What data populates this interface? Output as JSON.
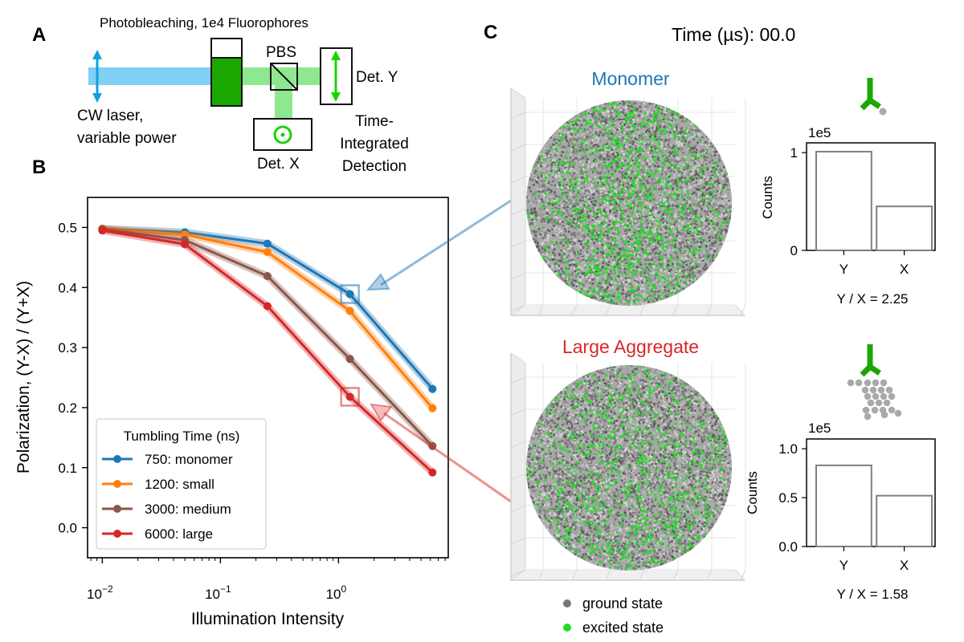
{
  "panel_labels": {
    "a": "A",
    "b": "B",
    "c": "C"
  },
  "schematic": {
    "title": "Photobleaching, 1e4 Fluorophores",
    "laser_label_1": "CW laser,",
    "laser_label_2": "variable power",
    "pbs_label": "PBS",
    "det_y_label": "Det. Y",
    "det_x_label": "Det. X",
    "detection_1": "Time-",
    "detection_2": "Integrated",
    "detection_3": "Detection"
  },
  "time_readout": "Time (µs): 00.0",
  "sim": {
    "monomer_title": "Monomer",
    "aggregate_title": "Large Aggregate",
    "legend": {
      "ground": "ground state",
      "excited": "excited state"
    }
  },
  "colors": {
    "monomer": "#1f77b4",
    "small": "#ff7f0e",
    "medium": "#8c564b",
    "large": "#d62728",
    "laser": "#7fd0f4",
    "laser_arrow": "#0fa0e0",
    "beam": "#8fe88f",
    "green": "#1aa800",
    "excited": "#22dd22",
    "ground": "#777777"
  },
  "chart_data": [
    {
      "type": "line",
      "xlabel": "Illumination Intensity",
      "ylabel": "Polarization, (Y-X) / (Y+X)",
      "xscale": "log",
      "xlim": [
        0.0075,
        8.5
      ],
      "ylim": [
        -0.05,
        0.55
      ],
      "xticks": [
        0.01,
        0.1,
        1
      ],
      "xtick_labels": [
        {
          "base": "10",
          "exp": "−2"
        },
        {
          "base": "10",
          "exp": "−1"
        },
        {
          "base": "10",
          "exp": "0"
        }
      ],
      "yticks": [
        0.0,
        0.1,
        0.2,
        0.3,
        0.4,
        0.5
      ],
      "ytick_labels": [
        "0.0",
        "0.1",
        "0.2",
        "0.3",
        "0.4",
        "0.5"
      ],
      "x": [
        0.01,
        0.05,
        0.25,
        1.25,
        6.25
      ],
      "grid": false,
      "legend_title": "Tumbling Time (ns)",
      "legend_position": "lower-left",
      "series": [
        {
          "name": "750: monomer",
          "color": "#1f77b4",
          "values": [
            0.498,
            0.492,
            0.473,
            0.389,
            0.231
          ]
        },
        {
          "name": "1200: small",
          "color": "#ff7f0e",
          "values": [
            0.498,
            0.488,
            0.459,
            0.361,
            0.199
          ]
        },
        {
          "name": "3000: medium",
          "color": "#8c564b",
          "values": [
            0.497,
            0.479,
            0.419,
            0.281,
            0.136
          ]
        },
        {
          "name": "6000: large",
          "color": "#d62728",
          "values": [
            0.495,
            0.472,
            0.369,
            0.218,
            0.092
          ]
        }
      ],
      "highlights": [
        {
          "x": 1.25,
          "y": 0.389,
          "color": "#1f77b4"
        },
        {
          "x": 1.25,
          "y": 0.218,
          "color": "#d62728"
        }
      ]
    },
    {
      "type": "bar",
      "categories": [
        "Y",
        "X"
      ],
      "values": [
        1.01,
        0.45
      ],
      "scale_label": "1e5",
      "ylabel": "Counts",
      "ylim": [
        0,
        1.1
      ],
      "yticks": [
        0,
        1
      ],
      "ytick_labels": [
        "0",
        "1"
      ],
      "ratio_label": "Y / X = 2.25"
    },
    {
      "type": "bar",
      "categories": [
        "Y",
        "X"
      ],
      "values": [
        0.83,
        0.52
      ],
      "scale_label": "1e5",
      "ylabel": "Counts",
      "ylim": [
        0,
        1.1
      ],
      "yticks": [
        0,
        0.5,
        1
      ],
      "ytick_labels": [
        "0.0",
        "0.5",
        "1.0"
      ],
      "ratio_label": "Y / X = 1.58"
    }
  ]
}
